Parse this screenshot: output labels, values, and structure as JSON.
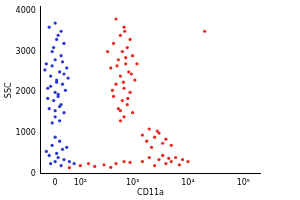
{
  "chart_data": {
    "type": "scatter",
    "x_label": "CD11a",
    "y_label": "SSC",
    "xlim": [
      -50,
      200000
    ],
    "xticks": [
      {
        "value": 0,
        "label": "0"
      },
      {
        "value": 100,
        "label": "10²"
      },
      {
        "value": 1000,
        "label": "10³"
      },
      {
        "value": 10000,
        "label": "10⁴"
      },
      {
        "value": 100000,
        "label": "10⁵"
      }
    ],
    "ylim": [
      0,
      4100
    ],
    "yticks": [
      0,
      1000,
      2000,
      3000,
      4000
    ],
    "grid": false,
    "series": [
      {
        "color": "#e8281e",
        "marker": "circle",
        "x": [
          500,
          700,
          600,
          900,
          450,
          800,
          650,
          1000,
          550,
          750,
          400,
          850,
          600,
          1100,
          500,
          700,
          900,
          450,
          650,
          800,
          550,
          1000,
          700,
          600,
          750,
          520,
          950,
          680,
          430,
          820,
          600,
          1200,
          350,
          720,
          2000,
          3000,
          2500,
          4000,
          1800,
          3500,
          5000,
          2200,
          2800,
          1500,
          2000,
          3000,
          5000,
          8000,
          4000,
          6000,
          2500,
          10000,
          3500,
          7000,
          1500,
          4500,
          50,
          100,
          200,
          300,
          500,
          700,
          150,
          400,
          900,
          20000
        ],
        "values": [
          3800,
          3600,
          3400,
          3300,
          3200,
          3100,
          3000,
          2900,
          2800,
          2700,
          2600,
          2500,
          2400,
          2300,
          2200,
          2100,
          2000,
          1900,
          1800,
          1700,
          1600,
          1500,
          1400,
          1300,
          2850,
          2650,
          2450,
          2250,
          2050,
          1850,
          1550,
          2700,
          3000,
          3500,
          1100,
          1000,
          900,
          850,
          800,
          750,
          700,
          650,
          1050,
          950,
          400,
          350,
          300,
          350,
          250,
          400,
          200,
          300,
          450,
          220,
          300,
          380,
          150,
          200,
          180,
          220,
          250,
          300,
          250,
          160,
          280,
          3500
        ]
      },
      {
        "color": "#2b35d8",
        "marker": "circle",
        "x": [
          -20,
          10,
          30,
          -10,
          20,
          0,
          -30,
          40,
          15,
          -15,
          5,
          25,
          -25,
          35,
          0,
          10,
          -5,
          20,
          -20,
          30,
          0,
          15,
          -10,
          5,
          -5,
          25,
          -35,
          45,
          -15,
          10,
          20,
          0,
          -10,
          30,
          5,
          -25,
          15,
          0,
          0,
          15,
          -10,
          25,
          5,
          -20,
          10,
          30,
          0,
          -15,
          20,
          50,
          70,
          -30,
          40
        ],
        "values": [
          3600,
          3400,
          3200,
          3000,
          2900,
          2800,
          2700,
          2600,
          2500,
          2400,
          2300,
          2200,
          2100,
          2050,
          2000,
          1900,
          1800,
          1700,
          1600,
          1500,
          1400,
          1300,
          1250,
          3300,
          3100,
          2750,
          2550,
          2350,
          2150,
          1950,
          3500,
          3700,
          2650,
          2450,
          2250,
          1850,
          1650,
          1550,
          900,
          800,
          700,
          600,
          500,
          450,
          400,
          350,
          300,
          250,
          200,
          300,
          250,
          550,
          650
        ]
      }
    ]
  }
}
